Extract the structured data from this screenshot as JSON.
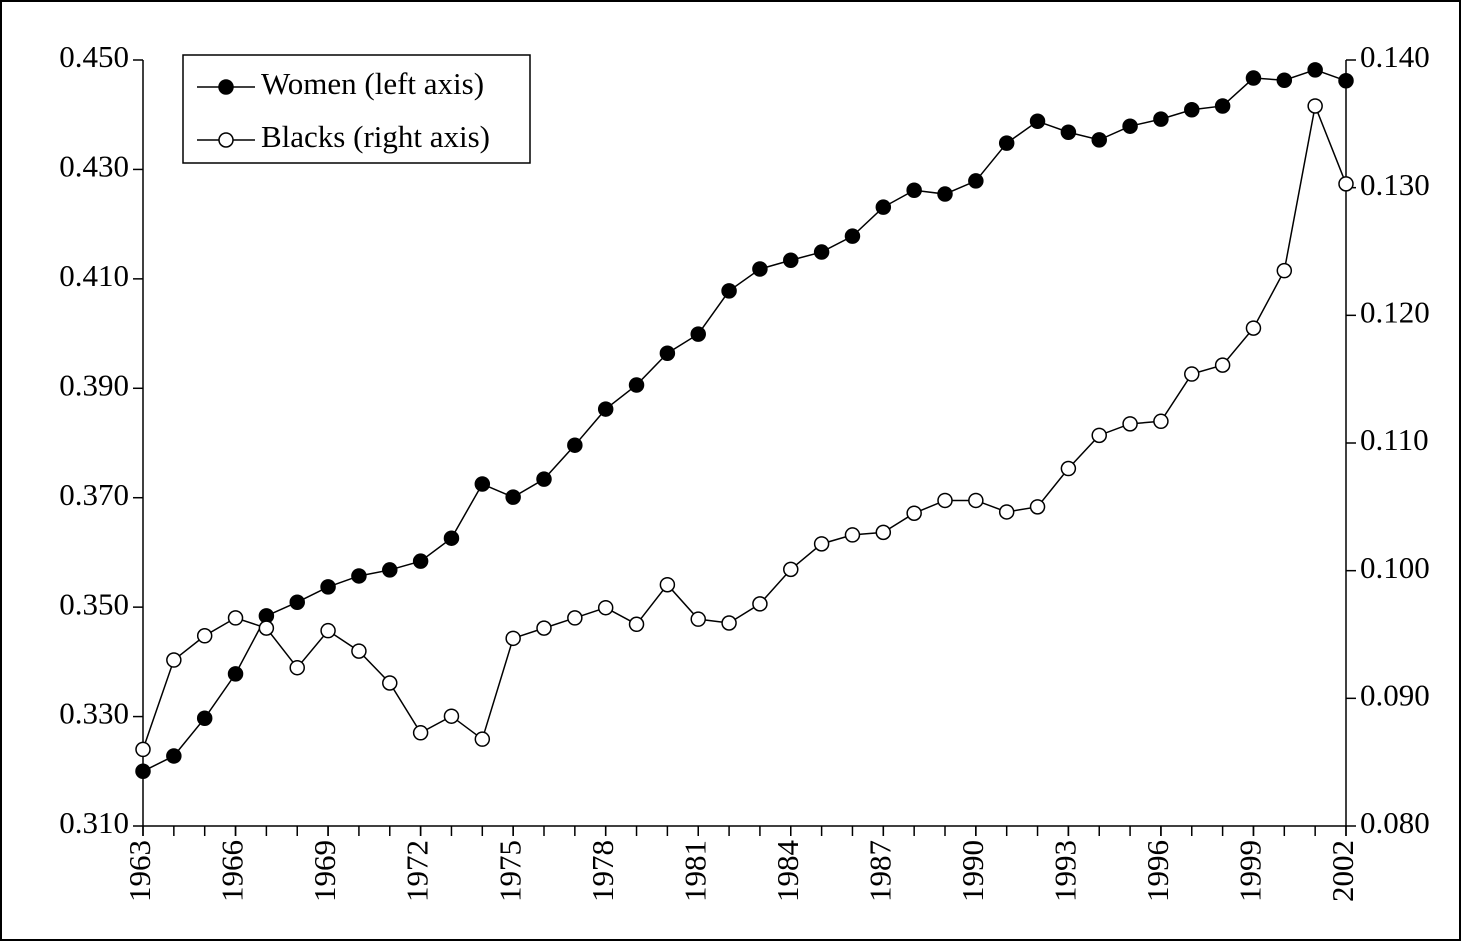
{
  "chart_data": {
    "type": "line",
    "x": [
      1963,
      1964,
      1965,
      1966,
      1967,
      1968,
      1969,
      1970,
      1971,
      1972,
      1973,
      1974,
      1975,
      1976,
      1977,
      1978,
      1979,
      1980,
      1981,
      1982,
      1983,
      1984,
      1985,
      1986,
      1987,
      1988,
      1989,
      1990,
      1991,
      1992,
      1993,
      1994,
      1995,
      1996,
      1997,
      1998,
      1999,
      2000,
      2001,
      2002
    ],
    "series": [
      {
        "name": "Women (left axis)",
        "color": "#000000",
        "marker": "filled",
        "values": [
          0.32,
          0.3228,
          0.3297,
          0.3378,
          0.3484,
          0.3509,
          0.3537,
          0.3557,
          0.3568,
          0.3584,
          0.3626,
          0.3725,
          0.3701,
          0.3734,
          0.3796,
          0.3862,
          0.3906,
          0.3964,
          0.3999,
          0.4078,
          0.4118,
          0.4134,
          0.4149,
          0.4178,
          0.4231,
          0.4262,
          0.4255,
          0.4279,
          0.4348,
          0.4388,
          0.4368,
          0.4354,
          0.4379,
          0.4392,
          0.4409,
          0.4416,
          0.4467,
          0.4463,
          0.4482,
          0.4462
        ]
      },
      {
        "name": "Blacks (right axis)",
        "color": "#000000",
        "marker": "open",
        "axis": "y2",
        "values": [
          0.086,
          0.093,
          0.0949,
          0.0963,
          0.0955,
          0.0924,
          0.0953,
          0.0937,
          0.0912,
          0.0873,
          0.0886,
          0.0868,
          0.0947,
          0.0955,
          0.0963,
          0.0971,
          0.0958,
          0.0989,
          0.0962,
          0.0959,
          0.0974,
          0.1001,
          0.1021,
          0.1028,
          0.103,
          0.1045,
          0.1055,
          0.1055,
          0.1046,
          0.105,
          0.108,
          0.1106,
          0.1115,
          0.1117,
          0.1154,
          0.1161,
          0.119,
          0.1235,
          0.1364,
          0.1303
        ]
      }
    ],
    "xlim": [
      1963,
      2002
    ],
    "xticks": [
      1963,
      1966,
      1969,
      1972,
      1975,
      1978,
      1981,
      1984,
      1987,
      1990,
      1993,
      1996,
      1999,
      2002
    ],
    "ylim": [
      0.31,
      0.45
    ],
    "yticks": [
      {
        "value": 0.31,
        "label": "0.310"
      },
      {
        "value": 0.33,
        "label": "0.330"
      },
      {
        "value": 0.35,
        "label": "0.350"
      },
      {
        "value": 0.37,
        "label": "0.370"
      },
      {
        "value": 0.39,
        "label": "0.390"
      },
      {
        "value": 0.41,
        "label": "0.410"
      },
      {
        "value": 0.43,
        "label": "0.430"
      },
      {
        "value": 0.45,
        "label": "0.450"
      }
    ],
    "y2lim": [
      0.08,
      0.14
    ],
    "y2ticks": [
      {
        "value": 0.08,
        "label": "0.080"
      },
      {
        "value": 0.09,
        "label": "0.090"
      },
      {
        "value": 0.1,
        "label": "0.100"
      },
      {
        "value": 0.11,
        "label": "0.110"
      },
      {
        "value": 0.12,
        "label": "0.120"
      },
      {
        "value": 0.13,
        "label": "0.130"
      },
      {
        "value": 0.14,
        "label": "0.140"
      }
    ],
    "grid": false,
    "legend": "top-left"
  }
}
